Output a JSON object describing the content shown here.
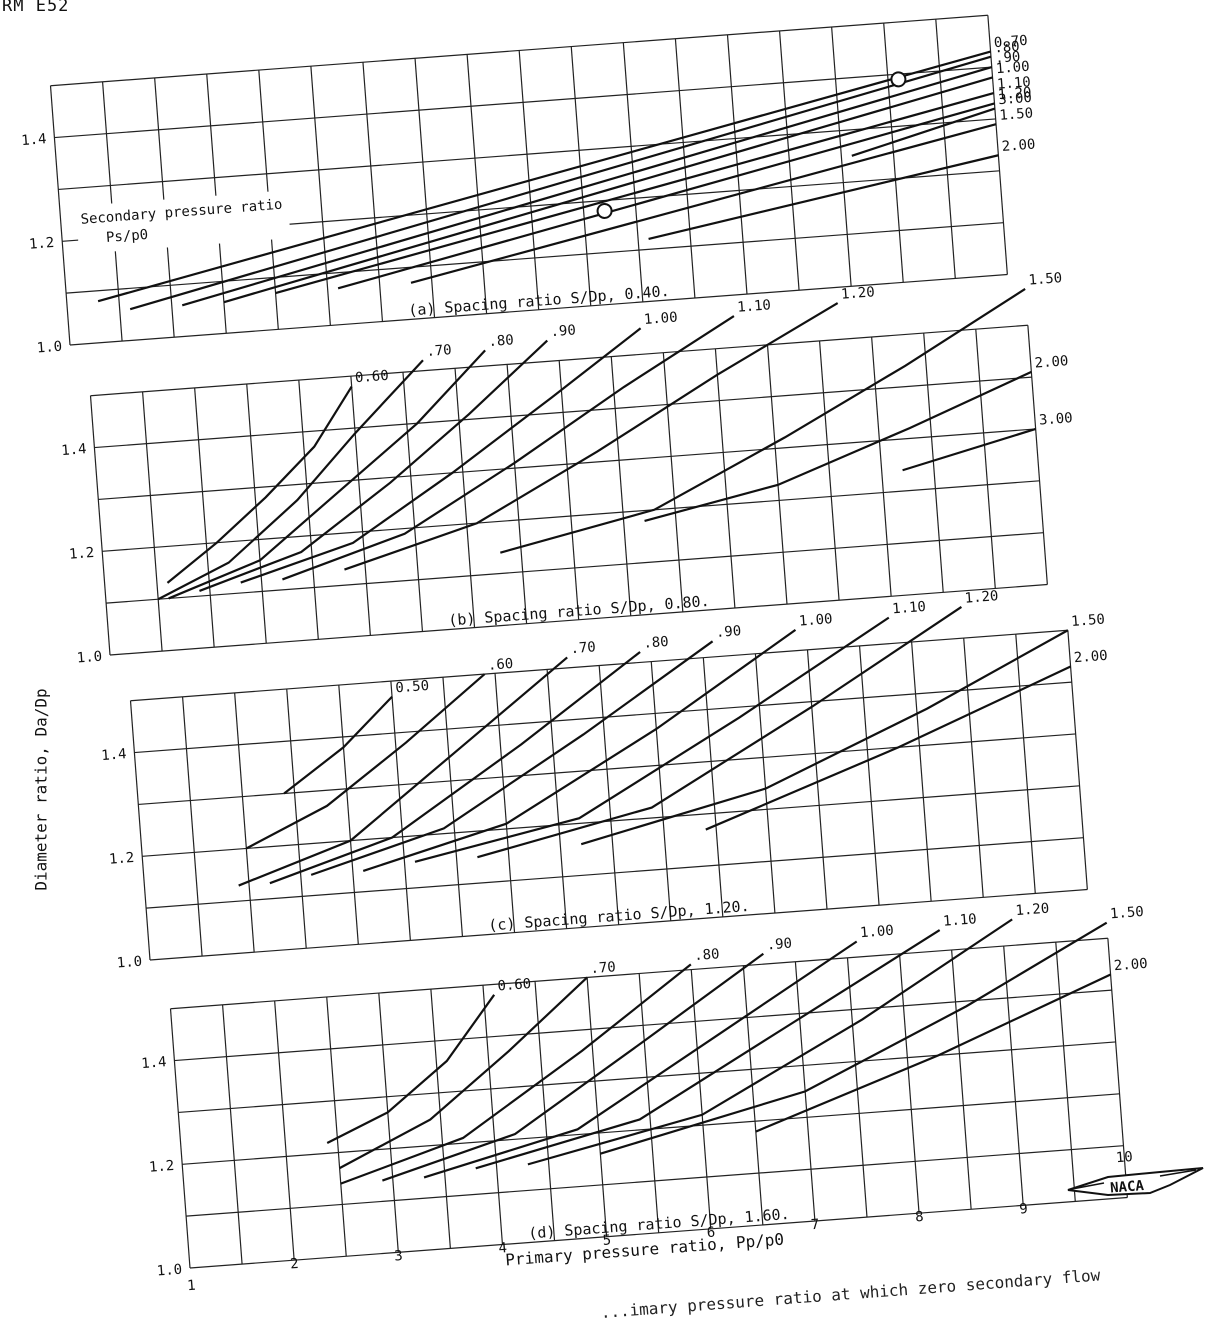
{
  "header": "RM E52",
  "ylabel": "Diameter ratio, Da/Dp",
  "xlabel": "Primary pressure ratio, Pp/p0",
  "footnote_partial": "(d) Spacing ratio S/Dp, 1.60.",
  "figure_caption_partial": "...imary pressure ratio at which zero secondary flow",
  "logo_text": "NACA",
  "chart_data": [
    {
      "type": "line",
      "title": "(a) Spacing ratio S/Dp, 0.40.",
      "legend_title": "Secondary pressure ratio, Ps/p0",
      "xlim": [
        1,
        10
      ],
      "ylim": [
        1.0,
        1.5
      ],
      "yticks": [
        1.0,
        1.2,
        1.4
      ],
      "series": [
        {
          "name": "0.70",
          "x": [
            1.3,
            10
          ],
          "y": [
            1.08,
            1.43
          ]
        },
        {
          "name": ".80",
          "x": [
            1.6,
            10
          ],
          "y": [
            1.06,
            1.42
          ]
        },
        {
          "name": ".90",
          "x": [
            2.1,
            10
          ],
          "y": [
            1.06,
            1.4
          ]
        },
        {
          "name": "1.00",
          "x": [
            2.5,
            10
          ],
          "y": [
            1.06,
            1.38
          ]
        },
        {
          "name": "1.10",
          "x": [
            3.0,
            10
          ],
          "y": [
            1.07,
            1.35
          ]
        },
        {
          "name": "1.20",
          "x": [
            3.6,
            10
          ],
          "y": [
            1.07,
            1.33
          ]
        },
        {
          "name": "1.50",
          "x": [
            4.3,
            10
          ],
          "y": [
            1.07,
            1.29
          ]
        },
        {
          "name": "2.00",
          "x": [
            6.6,
            10
          ],
          "y": [
            1.12,
            1.23
          ]
        },
        {
          "name": "3.00",
          "x": [
            8.6,
            10
          ],
          "y": [
            1.25,
            1.32
          ]
        }
      ],
      "markers": [
        {
          "x": 6.2,
          "y": 1.18
        },
        {
          "x": 9.1,
          "y": 1.39
        }
      ]
    },
    {
      "type": "line",
      "title": "(b) Spacing ratio S/Dp, 0.80.",
      "xlim": [
        1,
        10
      ],
      "ylim": [
        1.0,
        1.5
      ],
      "yticks": [
        1.0,
        1.2,
        1.4
      ],
      "series": [
        {
          "name": "0.60",
          "x": [
            1.6,
            2.1,
            2.6,
            3.1,
            3.5
          ],
          "y": [
            1.13,
            1.2,
            1.28,
            1.37,
            1.48
          ]
        },
        {
          "name": ".70",
          "x": [
            1.5,
            2.2,
            2.9,
            3.5,
            4.2
          ],
          "y": [
            1.1,
            1.16,
            1.27,
            1.39,
            1.52
          ]
        },
        {
          "name": ".80",
          "x": [
            1.6,
            2.5,
            3.3,
            4.1,
            4.8
          ],
          "y": [
            1.1,
            1.16,
            1.28,
            1.4,
            1.53
          ]
        },
        {
          "name": ".90",
          "x": [
            1.9,
            2.9,
            3.8,
            4.6,
            5.4
          ],
          "y": [
            1.11,
            1.17,
            1.29,
            1.41,
            1.54
          ]
        },
        {
          "name": "1.00",
          "x": [
            2.3,
            3.4,
            4.4,
            5.4,
            6.3
          ],
          "y": [
            1.12,
            1.18,
            1.3,
            1.43,
            1.55
          ]
        },
        {
          "name": "1.10",
          "x": [
            2.7,
            3.9,
            5.0,
            6.1,
            7.2
          ],
          "y": [
            1.12,
            1.19,
            1.31,
            1.44,
            1.56
          ]
        },
        {
          "name": "1.20",
          "x": [
            3.3,
            4.6,
            5.8,
            7.0,
            8.2
          ],
          "y": [
            1.13,
            1.2,
            1.32,
            1.45,
            1.57
          ]
        },
        {
          "name": "1.50",
          "x": [
            4.8,
            6.3,
            7.6,
            8.8,
            10.0
          ],
          "y": [
            1.14,
            1.2,
            1.32,
            1.44,
            1.57
          ]
        },
        {
          "name": "2.00",
          "x": [
            6.2,
            7.5,
            8.8,
            10.0
          ],
          "y": [
            1.18,
            1.23,
            1.32,
            1.41
          ]
        },
        {
          "name": "3.00",
          "x": [
            8.7,
            10.0
          ],
          "y": [
            1.24,
            1.3
          ]
        }
      ]
    },
    {
      "type": "line",
      "title": "(c) Spacing ratio S/Dp, 1.20.",
      "xlim": [
        1,
        10
      ],
      "ylim": [
        1.0,
        1.5
      ],
      "yticks": [
        1.0,
        1.2,
        1.4
      ],
      "series": [
        {
          "name": "0.50",
          "x": [
            2.4,
            3.0,
            3.5
          ],
          "y": [
            1.3,
            1.38,
            1.47
          ]
        },
        {
          "name": ".60",
          "x": [
            2.0,
            2.8,
            3.6,
            4.4
          ],
          "y": [
            1.2,
            1.27,
            1.38,
            1.5
          ]
        },
        {
          "name": ".70",
          "x": [
            1.9,
            3.0,
            4.1,
            5.2
          ],
          "y": [
            1.13,
            1.2,
            1.36,
            1.52
          ]
        },
        {
          "name": ".80",
          "x": [
            2.2,
            3.4,
            4.7,
            5.9
          ],
          "y": [
            1.13,
            1.2,
            1.36,
            1.52
          ]
        },
        {
          "name": ".90",
          "x": [
            2.6,
            3.9,
            5.3,
            6.6
          ],
          "y": [
            1.14,
            1.21,
            1.37,
            1.53
          ]
        },
        {
          "name": "1.00",
          "x": [
            3.1,
            4.5,
            6.0,
            7.4
          ],
          "y": [
            1.14,
            1.21,
            1.37,
            1.54
          ]
        },
        {
          "name": "1.10",
          "x": [
            3.6,
            5.2,
            6.8,
            8.3
          ],
          "y": [
            1.15,
            1.21,
            1.38,
            1.55
          ]
        },
        {
          "name": "1.20",
          "x": [
            4.2,
            5.9,
            7.5,
            9.0
          ],
          "y": [
            1.15,
            1.22,
            1.39,
            1.56
          ]
        },
        {
          "name": "1.50",
          "x": [
            5.2,
            7.0,
            8.6,
            10.0
          ],
          "y": [
            1.16,
            1.24,
            1.37,
            1.5
          ]
        },
        {
          "name": "2.00",
          "x": [
            6.4,
            8.3,
            10.0
          ],
          "y": [
            1.17,
            1.3,
            1.43
          ]
        }
      ]
    },
    {
      "type": "line",
      "title": "(d) Spacing ratio S/Dp, 1.60.",
      "xlabel": "Primary pressure ratio, Pp/p0",
      "xlim": [
        1,
        10
      ],
      "ylim": [
        1.0,
        1.5
      ],
      "xticks": [
        1,
        2,
        3,
        4,
        5,
        6,
        7,
        8,
        9,
        10
      ],
      "yticks": [
        1.0,
        1.2,
        1.4
      ],
      "series": [
        {
          "name": "0.60",
          "x": [
            2.4,
            3.0,
            3.6,
            4.1
          ],
          "y": [
            1.22,
            1.27,
            1.36,
            1.48
          ]
        },
        {
          "name": ".70",
          "x": [
            2.5,
            3.4,
            4.2,
            5.0
          ],
          "y": [
            1.17,
            1.25,
            1.37,
            1.5
          ]
        },
        {
          "name": ".80",
          "x": [
            2.5,
            3.7,
            4.9,
            6.0
          ],
          "y": [
            1.14,
            1.21,
            1.36,
            1.51
          ]
        },
        {
          "name": ".90",
          "x": [
            2.9,
            4.2,
            5.5,
            6.7
          ],
          "y": [
            1.14,
            1.21,
            1.37,
            1.52
          ]
        },
        {
          "name": "1.00",
          "x": [
            3.3,
            4.8,
            6.2,
            7.6
          ],
          "y": [
            1.14,
            1.21,
            1.37,
            1.53
          ]
        },
        {
          "name": "1.10",
          "x": [
            3.8,
            5.4,
            6.9,
            8.4
          ],
          "y": [
            1.15,
            1.22,
            1.38,
            1.54
          ]
        },
        {
          "name": "1.20",
          "x": [
            4.3,
            6.0,
            7.6,
            9.1
          ],
          "y": [
            1.15,
            1.22,
            1.38,
            1.55
          ]
        },
        {
          "name": "1.50",
          "x": [
            5.0,
            7.0,
            8.6,
            10.0
          ],
          "y": [
            1.16,
            1.25,
            1.39,
            1.53
          ]
        },
        {
          "name": "2.00",
          "x": [
            6.5,
            8.3,
            10.0
          ],
          "y": [
            1.18,
            1.3,
            1.43
          ]
        }
      ]
    }
  ]
}
